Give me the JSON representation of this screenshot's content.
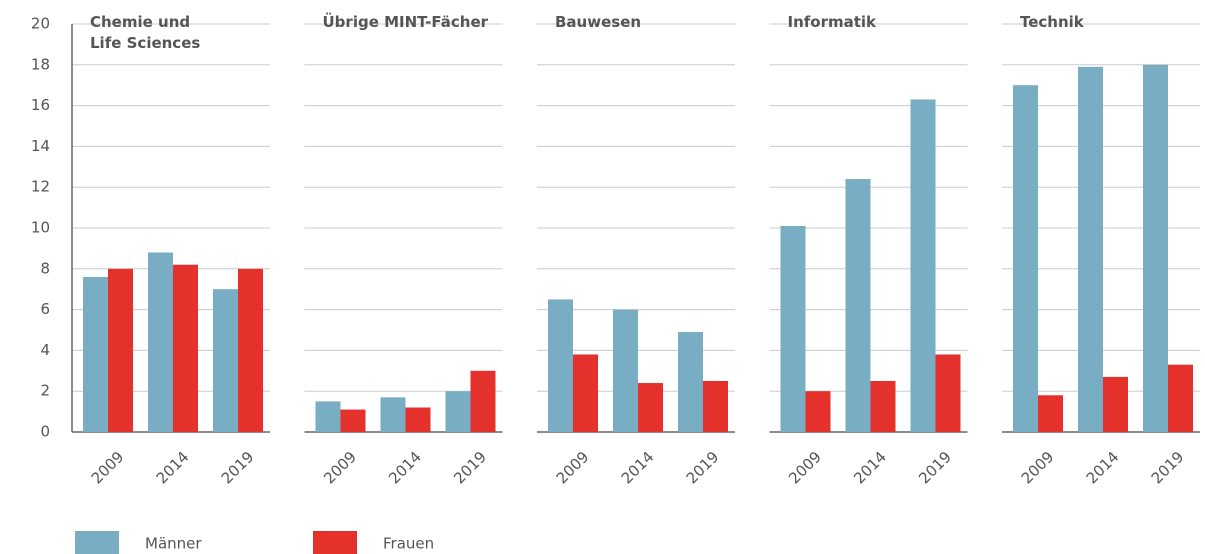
{
  "chart_data": {
    "type": "bar",
    "panels": [
      "Chemie und Life Sciences",
      "Übrige MINT-Fächer",
      "Bauwesen",
      "Informatik",
      "Technik"
    ],
    "categories": [
      "2009",
      "2014",
      "2019"
    ],
    "series": [
      {
        "name": "Männer",
        "color": "#79adc4",
        "values": [
          [
            7.6,
            8.8,
            7.0
          ],
          [
            1.5,
            1.7,
            2.0
          ],
          [
            6.5,
            6.0,
            4.9
          ],
          [
            10.1,
            12.4,
            16.3
          ],
          [
            17.0,
            17.9,
            18.0
          ]
        ]
      },
      {
        "name": "Frauen",
        "color": "#e5312b",
        "values": [
          [
            8.0,
            8.2,
            8.0
          ],
          [
            1.1,
            1.2,
            3.0
          ],
          [
            3.8,
            2.4,
            2.5
          ],
          [
            2.0,
            2.5,
            3.8
          ],
          [
            1.8,
            2.7,
            3.3
          ]
        ]
      }
    ],
    "ylim": [
      0,
      20
    ],
    "yticks": [
      0,
      2,
      4,
      6,
      8,
      10,
      12,
      14,
      16,
      18,
      20
    ],
    "grid": true
  }
}
